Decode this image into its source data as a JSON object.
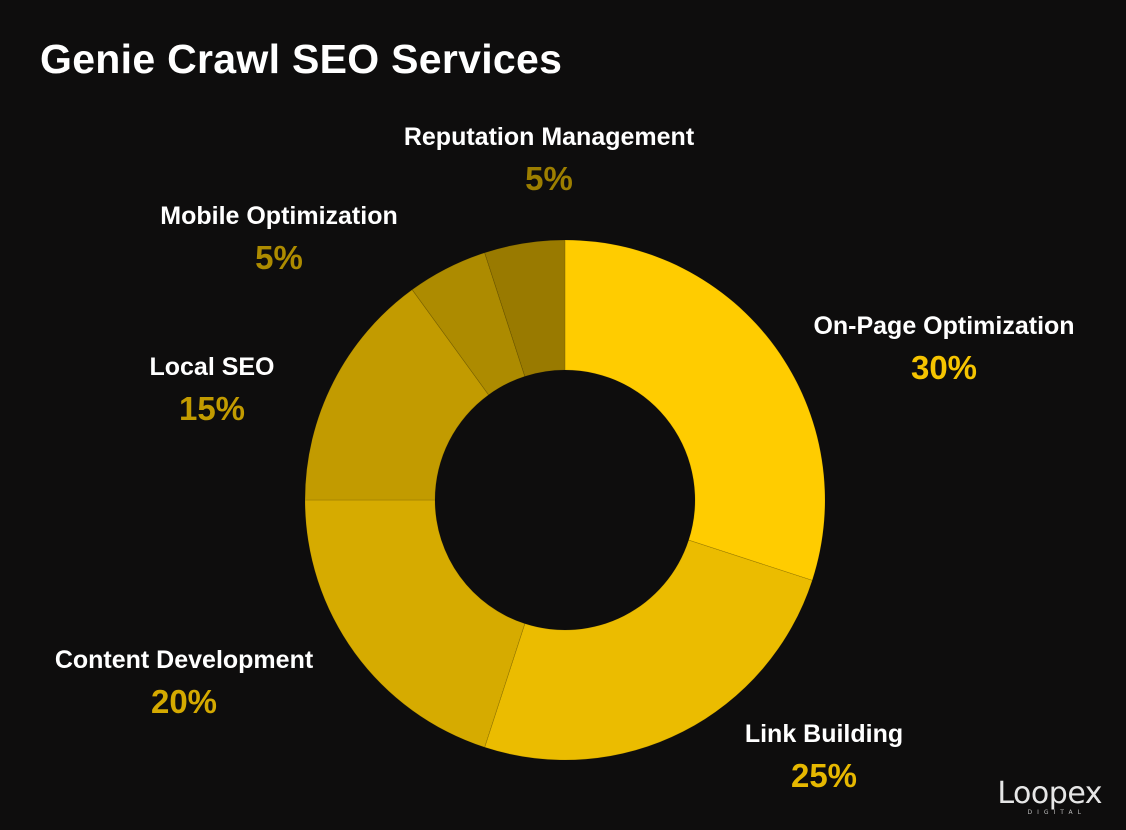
{
  "chart_data": {
    "type": "pie",
    "title": "Genie Crawl SEO Services",
    "donut": true,
    "categories": [
      "On-Page Optimization",
      "Link Building",
      "Content Development",
      "Local SEO",
      "Mobile Optimization",
      "Reputation Management"
    ],
    "values": [
      30,
      25,
      20,
      15,
      5,
      5
    ],
    "value_labels": [
      "30%",
      "25%",
      "20%",
      "15%",
      "5%",
      "5%"
    ],
    "colors": [
      "#ffcc00",
      "#ebbc00",
      "#d6ab00",
      "#c29b00",
      "#ad8b00",
      "#997a00"
    ],
    "label_color": "#ffffff",
    "percent_colors": [
      "#f5c400",
      "#e6b800",
      "#d4a900",
      "#c29b00",
      "#ad8b00",
      "#9c7e00"
    ],
    "legend": "none"
  },
  "branding": {
    "logo_text": "Loopex",
    "logo_sub": "DIGITAL"
  }
}
